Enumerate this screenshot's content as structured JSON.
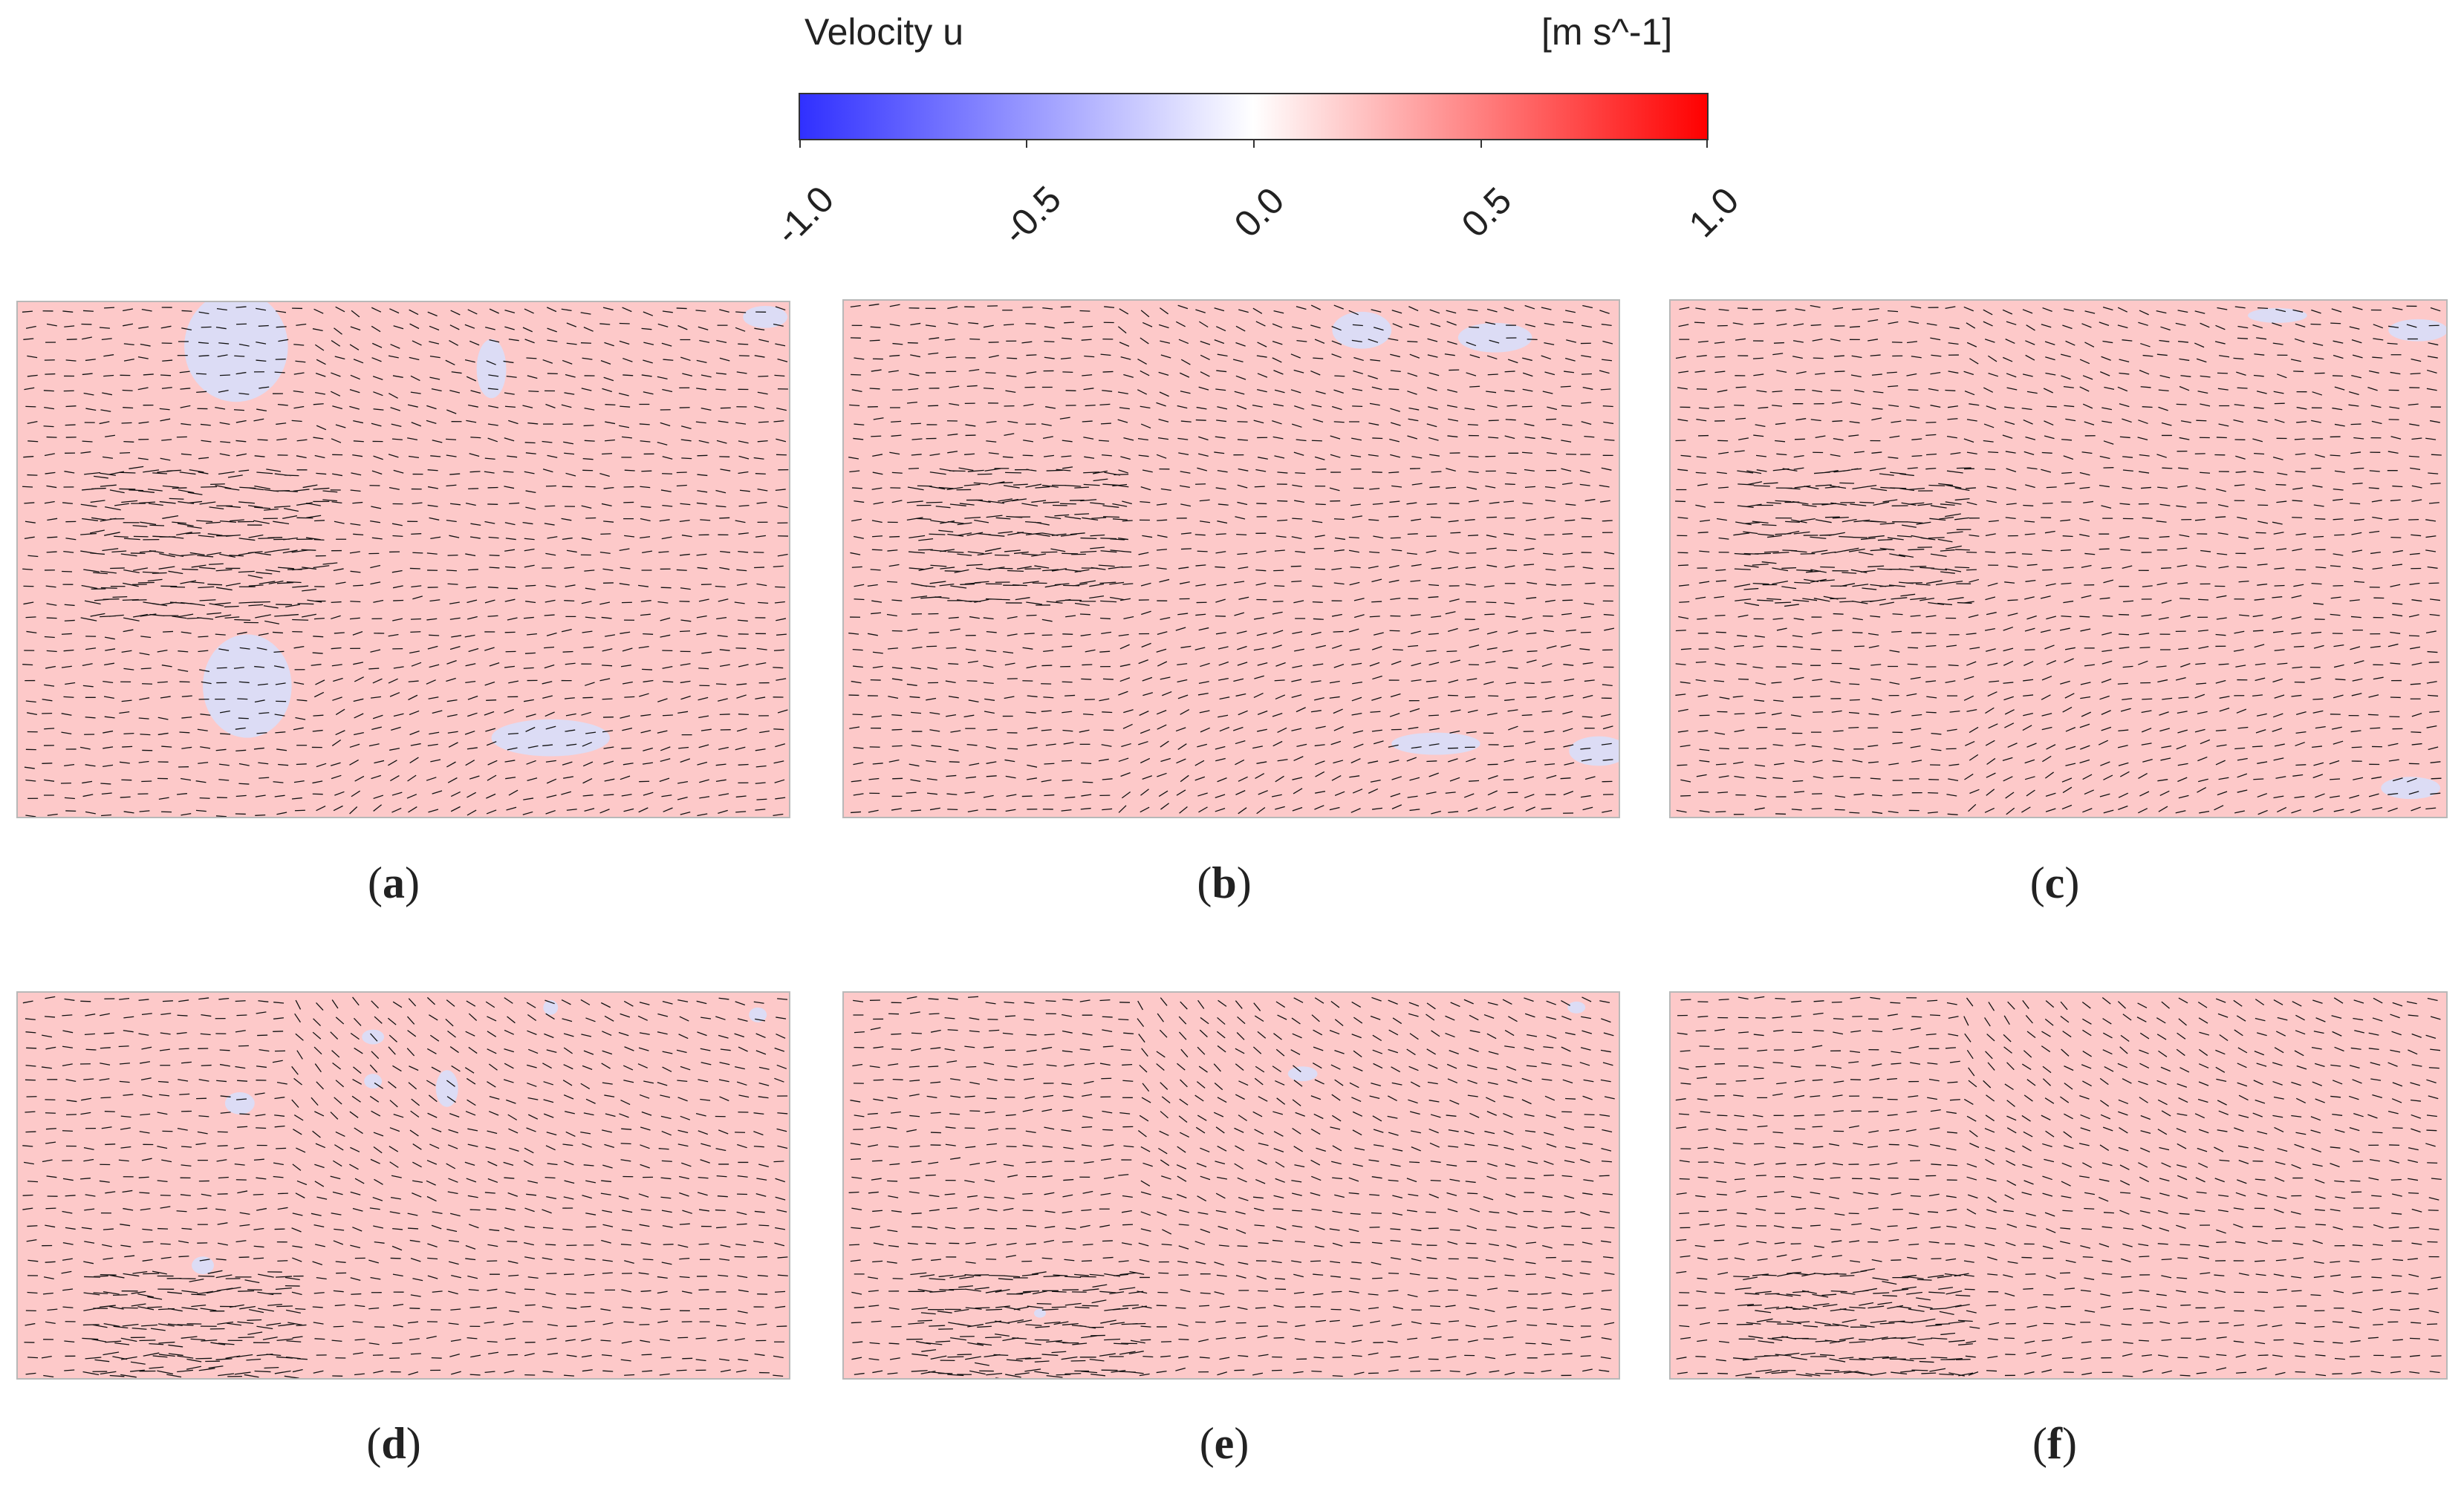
{
  "colorbar": {
    "title": "Velocity u",
    "unit": "[m s^-1]",
    "min": -1.0,
    "max": 1.0,
    "ticks": [
      "-1.0",
      "-0.5",
      "0.0",
      "0.5",
      "1.0"
    ],
    "colors": {
      "low": "#3030ff",
      "mid": "#ffffff",
      "high": "#ff0000"
    }
  },
  "panels": [
    {
      "id": "a",
      "label": "a"
    },
    {
      "id": "b",
      "label": "b"
    },
    {
      "id": "c",
      "label": "c"
    },
    {
      "id": "d",
      "label": "d"
    },
    {
      "id": "e",
      "label": "e"
    },
    {
      "id": "f",
      "label": "f"
    }
  ],
  "field_colors": {
    "background": "#fdc9c9",
    "negative_patch": "#dcdcf5",
    "vector": "#111111"
  }
}
